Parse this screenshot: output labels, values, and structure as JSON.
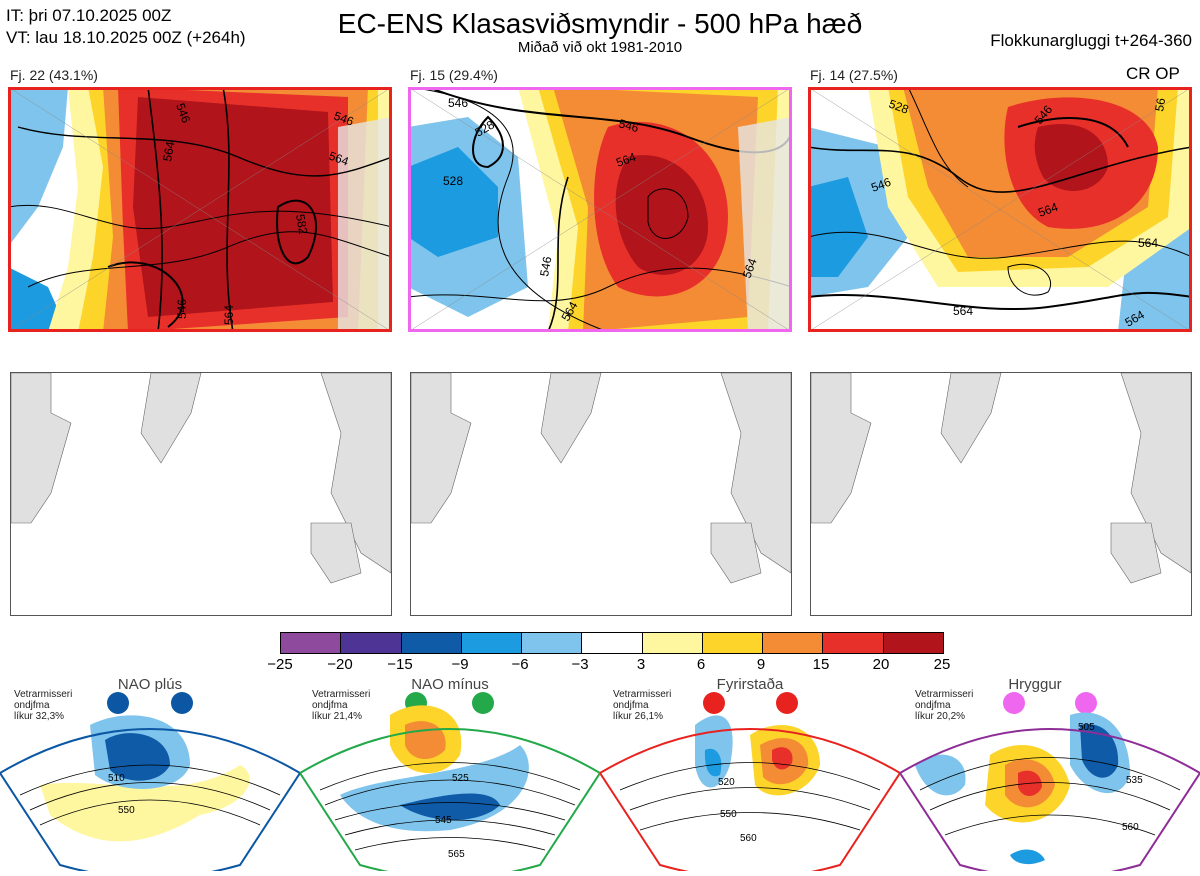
{
  "header": {
    "it": "IT: þri 07.10.2025 00Z",
    "vt": "VT: lau 18.10.2025 00Z  (+264h)",
    "title": "EC-ENS Klasasviðsmyndir - 500 hPa hæð",
    "subtitle": "Miðað við okt 1981-2010",
    "window": "Flokkunargluggi t+264-360"
  },
  "clusters": [
    {
      "label": "Fj. 22 (43.1%)",
      "border": "#e8231f",
      "contours": [
        "546",
        "546",
        "564",
        "564",
        "582",
        "546",
        "564"
      ]
    },
    {
      "label": "Fj. 15 (29.4%)",
      "border": "#ef66ef",
      "contours": [
        "546",
        "528",
        "528",
        "546",
        "564",
        "546",
        "564",
        "564"
      ]
    },
    {
      "label": "Fj. 14 (27.5%)",
      "border": "#e8231f",
      "contours": [
        "528",
        "546",
        "546",
        "564",
        "564",
        "564",
        "56",
        "564"
      ],
      "tag": "CR OP"
    }
  ],
  "colorbar": {
    "labels": [
      "−25",
      "−20",
      "−15",
      "−9",
      "−6",
      "−3",
      "3",
      "6",
      "9",
      "15",
      "20",
      "25"
    ],
    "colors": [
      "#8e4a9c",
      "#4e3595",
      "#0f5ba7",
      "#1c9be0",
      "#7fc4ec",
      "#ffffff",
      "#fff6a0",
      "#fdd52a",
      "#f48c35",
      "#e8302b",
      "#b1141a"
    ]
  },
  "regimes": [
    {
      "name": "NAO plús",
      "season": "Vetrarmisseri",
      "quantity": "ondjfma",
      "likelihood": "líkur 32,3%",
      "color": "#0c57a4",
      "contours": [
        "510",
        "550"
      ]
    },
    {
      "name": "NAO mínus",
      "season": "Vetrarmisseri",
      "quantity": "ondjfma",
      "likelihood": "líkur 21,4%",
      "color": "#23a84a",
      "contours": [
        "525",
        "545",
        "565"
      ]
    },
    {
      "name": "Fyrirstaða",
      "season": "Vetrarmisseri",
      "quantity": "ondjfma",
      "likelihood": "líkur 26,1%",
      "color": "#e8231f",
      "contours": [
        "520",
        "550",
        "560"
      ]
    },
    {
      "name": "Hryggur",
      "season": "Vetrarmisseri",
      "quantity": "ondjfma",
      "likelihood": "líkur 20,2%",
      "color": "#8d2d96",
      "contours": [
        "505",
        "535",
        "560"
      ]
    }
  ]
}
